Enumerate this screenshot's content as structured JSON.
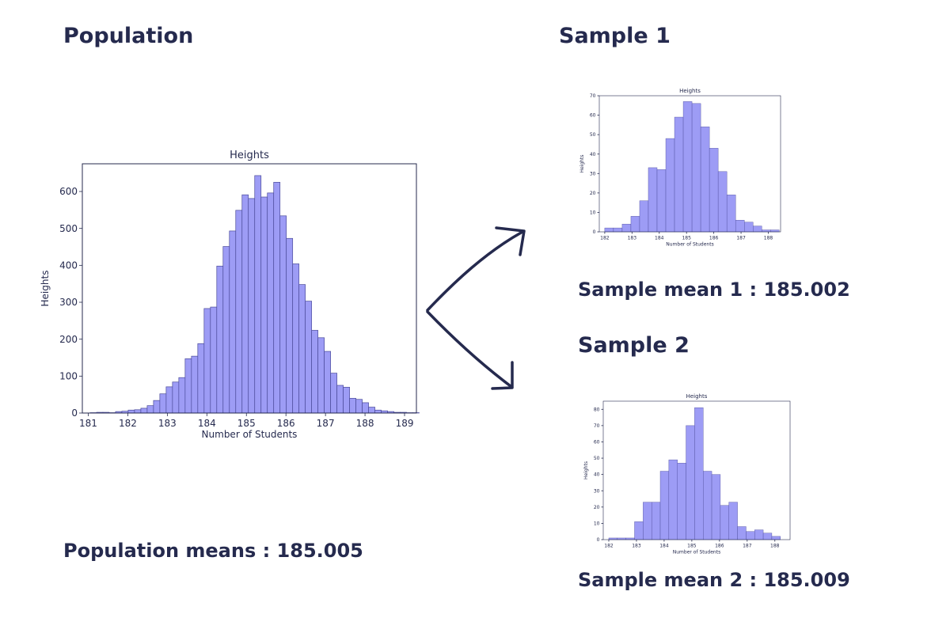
{
  "headings": {
    "population": "Population",
    "sample1": "Sample 1",
    "sample2": "Sample 2",
    "population_mean": "Population means : 185.005",
    "sample1_mean": "Sample mean 1 : 185.002",
    "sample2_mean": "Sample mean 2 : 185.009"
  },
  "colors": {
    "text": "#252a4e",
    "bar_fill": "#9d9cf5",
    "bar_stroke": "#4b4b9a",
    "axis": "#252a4e",
    "arrow": "#252a4e"
  },
  "chart_data": [
    {
      "type": "bar",
      "id": "population",
      "title": "Heights",
      "xlabel": "Number of Students",
      "ylabel": "Heights",
      "xlim": [
        180.85,
        189.3
      ],
      "ylim": [
        0,
        675
      ],
      "xticks": [
        181,
        182,
        183,
        184,
        185,
        186,
        187,
        188,
        189
      ],
      "yticks": [
        0,
        100,
        200,
        300,
        400,
        500,
        600
      ],
      "bin_start": 181.05,
      "bin_width": 0.16,
      "values": [
        1,
        2,
        2,
        1,
        4,
        5,
        8,
        9,
        13,
        20,
        34,
        52,
        71,
        84,
        96,
        147,
        154,
        188,
        283,
        287,
        398,
        451,
        493,
        549,
        591,
        581,
        643,
        585,
        596,
        625,
        534,
        473,
        404,
        348,
        303,
        224,
        204,
        167,
        108,
        75,
        70,
        40,
        37,
        28,
        16,
        8,
        6,
        4,
        2,
        2,
        1,
        1
      ]
    },
    {
      "type": "bar",
      "id": "sample1",
      "title": "Heights",
      "xlabel": "Number of Students",
      "ylabel": "Heights",
      "xlim": [
        181.8,
        188.45
      ],
      "ylim": [
        0,
        70
      ],
      "xticks": [
        182,
        183,
        184,
        185,
        186,
        187,
        188
      ],
      "yticks": [
        0,
        10,
        20,
        30,
        40,
        50,
        60,
        70
      ],
      "bin_start": 182.0,
      "bin_width": 0.32,
      "values": [
        2,
        2,
        4,
        8,
        16,
        33,
        32,
        48,
        59,
        67,
        66,
        54,
        43,
        31,
        19,
        6,
        5,
        3,
        1,
        1
      ]
    },
    {
      "type": "bar",
      "id": "sample2",
      "title": "Heights",
      "xlabel": "Number of Students",
      "ylabel": "Heights",
      "xlim": [
        181.8,
        188.55
      ],
      "ylim": [
        0,
        85
      ],
      "xticks": [
        182,
        183,
        184,
        185,
        186,
        187,
        188
      ],
      "yticks": [
        0,
        10,
        20,
        30,
        40,
        50,
        60,
        70,
        80
      ],
      "bin_start": 182.0,
      "bin_width": 0.31,
      "values": [
        1,
        1,
        1,
        11,
        23,
        23,
        42,
        49,
        47,
        70,
        81,
        42,
        40,
        21,
        23,
        8,
        5,
        6,
        4,
        2
      ]
    }
  ]
}
